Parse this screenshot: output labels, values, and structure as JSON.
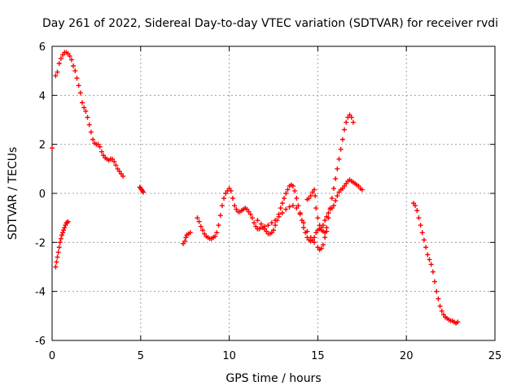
{
  "chart_data": {
    "type": "scatter",
    "title": "Day 261 of 2022, Sidereal Day-to-day VTEC variation (SDTVAR) for receiver rvdi",
    "xlabel": "GPS time / hours",
    "ylabel": "SDTVAR / TECUs",
    "xlim": [
      0,
      25
    ],
    "ylim": [
      -6,
      6
    ],
    "xticks": [
      0,
      5,
      10,
      15,
      20,
      25
    ],
    "yticks": [
      -6,
      -4,
      -2,
      0,
      2,
      4,
      6
    ],
    "grid": true,
    "marker": "+",
    "series_color": "#ff0000",
    "series": [
      {
        "name": "s1",
        "points": [
          [
            0.0,
            1.85
          ]
        ]
      },
      {
        "name": "s2",
        "points": [
          [
            0.2,
            4.8
          ],
          [
            0.3,
            4.95
          ],
          [
            0.4,
            5.3
          ],
          [
            0.5,
            5.5
          ],
          [
            0.6,
            5.65
          ],
          [
            0.7,
            5.75
          ],
          [
            0.8,
            5.75
          ],
          [
            0.9,
            5.7
          ],
          [
            1.0,
            5.6
          ],
          [
            1.1,
            5.45
          ],
          [
            1.2,
            5.2
          ],
          [
            1.3,
            5.0
          ],
          [
            1.4,
            4.7
          ],
          [
            1.5,
            4.4
          ],
          [
            1.6,
            4.1
          ],
          [
            1.7,
            3.7
          ],
          [
            1.8,
            3.5
          ],
          [
            1.9,
            3.35
          ],
          [
            2.0,
            3.1
          ],
          [
            2.1,
            2.8
          ],
          [
            2.2,
            2.5
          ],
          [
            2.3,
            2.2
          ],
          [
            2.4,
            2.05
          ],
          [
            2.5,
            2.0
          ],
          [
            2.6,
            2.0
          ],
          [
            2.7,
            1.9
          ],
          [
            2.8,
            1.7
          ],
          [
            2.9,
            1.55
          ],
          [
            3.0,
            1.45
          ],
          [
            3.1,
            1.4
          ],
          [
            3.2,
            1.35
          ],
          [
            3.3,
            1.4
          ],
          [
            3.4,
            1.4
          ],
          [
            3.5,
            1.3
          ],
          [
            3.6,
            1.15
          ],
          [
            3.7,
            1.0
          ],
          [
            3.8,
            0.9
          ],
          [
            3.9,
            0.8
          ],
          [
            4.0,
            0.7
          ]
        ]
      },
      {
        "name": "s3",
        "points": [
          [
            0.2,
            -3.0
          ],
          [
            0.25,
            -2.8
          ],
          [
            0.3,
            -2.6
          ],
          [
            0.35,
            -2.4
          ],
          [
            0.4,
            -2.2
          ],
          [
            0.45,
            -2.0
          ],
          [
            0.5,
            -1.85
          ],
          [
            0.55,
            -1.7
          ],
          [
            0.6,
            -1.6
          ],
          [
            0.65,
            -1.5
          ],
          [
            0.7,
            -1.4
          ],
          [
            0.75,
            -1.3
          ],
          [
            0.8,
            -1.2
          ],
          [
            0.85,
            -1.2
          ],
          [
            0.9,
            -1.15
          ]
        ]
      },
      {
        "name": "s4",
        "points": [
          [
            4.95,
            0.25
          ],
          [
            5.0,
            0.2
          ],
          [
            5.05,
            0.15
          ],
          [
            5.1,
            0.1
          ],
          [
            5.15,
            0.05
          ]
        ]
      },
      {
        "name": "s5",
        "points": [
          [
            7.4,
            -2.05
          ],
          [
            7.5,
            -1.95
          ],
          [
            7.55,
            -1.8
          ],
          [
            7.6,
            -1.7
          ],
          [
            7.7,
            -1.65
          ],
          [
            7.8,
            -1.6
          ]
        ]
      },
      {
        "name": "s6",
        "points": [
          [
            8.2,
            -1.0
          ],
          [
            8.3,
            -1.15
          ],
          [
            8.4,
            -1.35
          ],
          [
            8.5,
            -1.5
          ],
          [
            8.6,
            -1.65
          ],
          [
            8.7,
            -1.75
          ],
          [
            8.8,
            -1.8
          ],
          [
            8.9,
            -1.85
          ],
          [
            9.0,
            -1.85
          ],
          [
            9.1,
            -1.8
          ],
          [
            9.2,
            -1.75
          ],
          [
            9.3,
            -1.6
          ],
          [
            9.4,
            -1.3
          ],
          [
            9.5,
            -0.9
          ],
          [
            9.6,
            -0.5
          ],
          [
            9.7,
            -0.2
          ],
          [
            9.8,
            0.0
          ],
          [
            9.9,
            0.1
          ],
          [
            10.0,
            0.2
          ],
          [
            10.1,
            0.1
          ],
          [
            10.2,
            -0.2
          ],
          [
            10.3,
            -0.5
          ],
          [
            10.4,
            -0.65
          ],
          [
            10.5,
            -0.75
          ],
          [
            10.6,
            -0.75
          ],
          [
            10.7,
            -0.7
          ],
          [
            10.8,
            -0.65
          ],
          [
            10.9,
            -0.6
          ],
          [
            11.0,
            -0.65
          ],
          [
            11.1,
            -0.75
          ],
          [
            11.2,
            -0.85
          ],
          [
            11.3,
            -1.0
          ],
          [
            11.4,
            -1.2
          ],
          [
            11.5,
            -1.35
          ],
          [
            11.6,
            -1.45
          ],
          [
            11.7,
            -1.45
          ],
          [
            11.8,
            -1.4
          ],
          [
            11.9,
            -1.4
          ],
          [
            12.0,
            -1.45
          ],
          [
            12.1,
            -1.55
          ],
          [
            12.2,
            -1.65
          ],
          [
            12.3,
            -1.65
          ],
          [
            12.4,
            -1.6
          ],
          [
            12.5,
            -1.5
          ],
          [
            12.6,
            -1.3
          ],
          [
            12.7,
            -1.1
          ],
          [
            12.8,
            -0.85
          ],
          [
            12.9,
            -0.6
          ],
          [
            13.0,
            -0.4
          ],
          [
            13.1,
            -0.2
          ],
          [
            13.2,
            0.0
          ],
          [
            13.3,
            0.15
          ],
          [
            13.4,
            0.3
          ],
          [
            13.5,
            0.35
          ],
          [
            13.6,
            0.3
          ],
          [
            13.7,
            0.1
          ],
          [
            13.8,
            -0.2
          ],
          [
            13.9,
            -0.5
          ],
          [
            14.0,
            -0.8
          ],
          [
            14.1,
            -1.1
          ],
          [
            14.2,
            -1.4
          ],
          [
            14.3,
            -1.6
          ],
          [
            14.4,
            -1.8
          ],
          [
            14.5,
            -1.9
          ],
          [
            14.6,
            -1.95
          ],
          [
            14.7,
            -1.9
          ],
          [
            14.8,
            -1.8
          ]
        ]
      },
      {
        "name": "s7",
        "points": [
          [
            11.6,
            -1.1
          ],
          [
            11.8,
            -1.25
          ],
          [
            12.0,
            -1.35
          ],
          [
            12.2,
            -1.3
          ],
          [
            12.4,
            -1.2
          ],
          [
            12.6,
            -1.1
          ],
          [
            12.8,
            -0.95
          ],
          [
            13.0,
            -0.8
          ],
          [
            13.2,
            -0.65
          ],
          [
            13.4,
            -0.55
          ],
          [
            13.6,
            -0.5
          ],
          [
            13.8,
            -0.6
          ],
          [
            14.0,
            -0.85
          ],
          [
            14.2,
            -1.2
          ],
          [
            14.4,
            -1.55
          ],
          [
            14.6,
            -1.8
          ],
          [
            14.8,
            -2.0
          ],
          [
            15.0,
            -2.2
          ],
          [
            15.1,
            -2.3
          ],
          [
            15.2,
            -2.25
          ],
          [
            15.3,
            -2.1
          ],
          [
            15.4,
            -1.8
          ],
          [
            15.5,
            -1.4
          ],
          [
            15.6,
            -1.0
          ],
          [
            15.7,
            -0.6
          ],
          [
            15.8,
            -0.2
          ],
          [
            15.9,
            0.2
          ],
          [
            16.0,
            0.6
          ],
          [
            16.1,
            1.0
          ],
          [
            16.2,
            1.4
          ],
          [
            16.3,
            1.8
          ],
          [
            16.4,
            2.2
          ],
          [
            16.5,
            2.6
          ],
          [
            16.6,
            2.9
          ],
          [
            16.7,
            3.1
          ],
          [
            16.8,
            3.2
          ],
          [
            16.9,
            3.1
          ],
          [
            17.0,
            2.9
          ]
        ]
      },
      {
        "name": "s8",
        "points": [
          [
            14.4,
            -0.25
          ],
          [
            14.5,
            -0.2
          ],
          [
            14.6,
            -0.1
          ],
          [
            14.7,
            0.05
          ],
          [
            14.8,
            0.15
          ],
          [
            14.85,
            -0.1
          ],
          [
            14.9,
            -0.6
          ],
          [
            15.0,
            -1.0
          ],
          [
            15.1,
            -1.3
          ],
          [
            15.2,
            -1.4
          ],
          [
            15.3,
            -1.3
          ],
          [
            15.4,
            -1.1
          ],
          [
            15.5,
            -0.95
          ],
          [
            15.6,
            -0.8
          ],
          [
            15.7,
            -0.65
          ],
          [
            15.8,
            -0.6
          ],
          [
            15.9,
            -0.5
          ],
          [
            16.0,
            -0.3
          ],
          [
            16.1,
            -0.1
          ],
          [
            16.2,
            0.05
          ],
          [
            16.3,
            0.15
          ],
          [
            16.4,
            0.2
          ],
          [
            16.5,
            0.3
          ],
          [
            16.6,
            0.4
          ],
          [
            16.7,
            0.5
          ],
          [
            16.8,
            0.55
          ],
          [
            16.9,
            0.5
          ],
          [
            17.0,
            0.45
          ],
          [
            17.1,
            0.4
          ],
          [
            17.2,
            0.35
          ],
          [
            17.3,
            0.3
          ],
          [
            17.4,
            0.2
          ],
          [
            17.5,
            0.15
          ]
        ]
      },
      {
        "name": "s9",
        "points": [
          [
            14.9,
            -1.6
          ],
          [
            15.0,
            -1.5
          ],
          [
            15.1,
            -1.45
          ],
          [
            15.2,
            -1.5
          ],
          [
            15.3,
            -1.55
          ],
          [
            15.4,
            -1.6
          ],
          [
            15.5,
            -1.55
          ]
        ]
      },
      {
        "name": "s10",
        "points": [
          [
            20.4,
            -0.4
          ],
          [
            20.5,
            -0.5
          ],
          [
            20.6,
            -0.7
          ],
          [
            20.7,
            -1.0
          ],
          [
            20.8,
            -1.3
          ],
          [
            20.9,
            -1.6
          ],
          [
            21.0,
            -1.9
          ],
          [
            21.1,
            -2.2
          ],
          [
            21.2,
            -2.5
          ],
          [
            21.3,
            -2.7
          ],
          [
            21.4,
            -2.9
          ],
          [
            21.5,
            -3.2
          ],
          [
            21.6,
            -3.6
          ],
          [
            21.7,
            -4.0
          ],
          [
            21.8,
            -4.3
          ],
          [
            21.9,
            -4.6
          ],
          [
            22.0,
            -4.8
          ],
          [
            22.1,
            -4.95
          ],
          [
            22.2,
            -5.05
          ],
          [
            22.3,
            -5.1
          ],
          [
            22.4,
            -5.15
          ],
          [
            22.5,
            -5.2
          ],
          [
            22.6,
            -5.2
          ],
          [
            22.7,
            -5.25
          ],
          [
            22.8,
            -5.3
          ],
          [
            22.9,
            -5.25
          ]
        ]
      }
    ]
  }
}
